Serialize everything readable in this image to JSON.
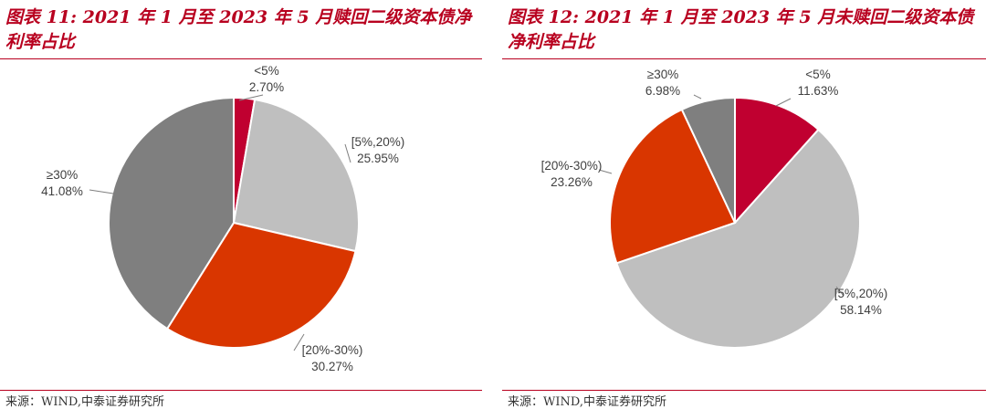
{
  "chart_data": [
    {
      "type": "pie",
      "title": "图表 11: 2021 年 1 月至 2023 年 5 月赎回二级资本债净利率占比",
      "source": "来源：WIND,中泰证券研究所",
      "slices": [
        {
          "category": "<5%",
          "value": 2.7,
          "label": "2.70%",
          "color": "#c00030"
        },
        {
          "category": "[5%,20%)",
          "value": 25.95,
          "label": "25.95%",
          "color": "#bfbfbf"
        },
        {
          "category": "[20%-30%)",
          "value": 30.27,
          "label": "30.27%",
          "color": "#d93600"
        },
        {
          "category": "≥30%",
          "value": 41.08,
          "label": "41.08%",
          "color": "#7f7f7f"
        }
      ]
    },
    {
      "type": "pie",
      "title": "图表 12: 2021 年 1 月至 2023 年 5 月未赎回二级资本债净利率占比",
      "source": "来源：WIND,中泰证券研究所",
      "slices": [
        {
          "category": "<5%",
          "value": 11.63,
          "label": "11.63%",
          "color": "#c00030"
        },
        {
          "category": "[5%,20%)",
          "value": 58.14,
          "label": "58.14%",
          "color": "#bfbfbf"
        },
        {
          "category": "[20%-30%)",
          "value": 23.26,
          "label": "23.26%",
          "color": "#d93600"
        },
        {
          "category": "≥30%",
          "value": 6.98,
          "label": "6.98%",
          "color": "#7f7f7f"
        }
      ]
    }
  ]
}
